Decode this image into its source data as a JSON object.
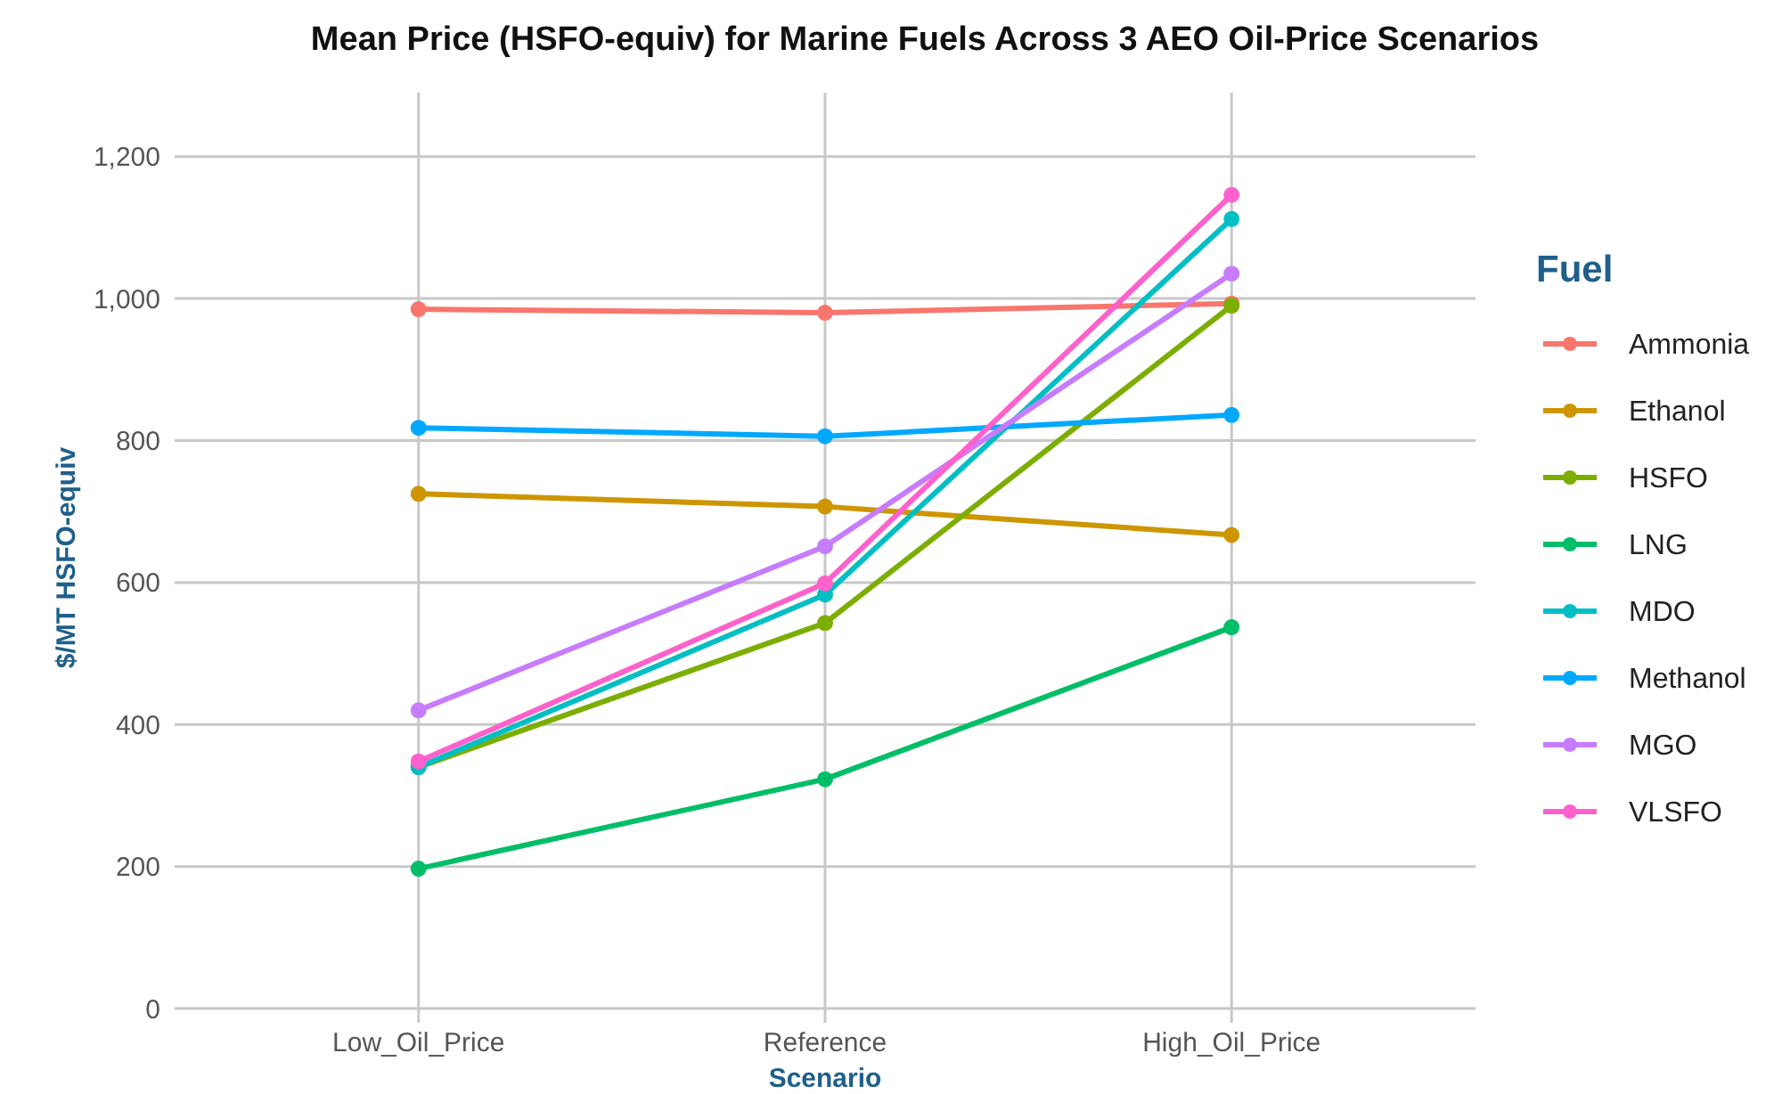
{
  "chart_data": {
    "type": "line",
    "title": "Mean Price (HSFO-equiv) for Marine Fuels Across 3 AEO Oil-Price Scenarios",
    "xlabel": "Scenario",
    "ylabel": "$/MT HSFO-equiv",
    "legend_title": "Fuel",
    "categories": [
      "Low_Oil_Price",
      "Reference",
      "High_Oil_Price"
    ],
    "series": [
      {
        "name": "Ammonia",
        "color": "#f8766d",
        "values": [
          985,
          980,
          993
        ]
      },
      {
        "name": "Ethanol",
        "color": "#cd9600",
        "values": [
          725,
          707,
          667
        ]
      },
      {
        "name": "HSFO",
        "color": "#7cae00",
        "values": [
          340,
          543,
          990
        ]
      },
      {
        "name": "LNG",
        "color": "#00be67",
        "values": [
          197,
          323,
          537
        ]
      },
      {
        "name": "MDO",
        "color": "#00bfc4",
        "values": [
          340,
          583,
          1112
        ]
      },
      {
        "name": "Methanol",
        "color": "#00a9ff",
        "values": [
          818,
          806,
          836
        ]
      },
      {
        "name": "MGO",
        "color": "#c77cff",
        "values": [
          420,
          651,
          1035
        ]
      },
      {
        "name": "VLSFO",
        "color": "#ff61cc",
        "values": [
          348,
          599,
          1146
        ]
      }
    ],
    "ylim": [
      -20,
      1290
    ],
    "yticks": [
      0,
      {
        "value": 200,
        "label": "200"
      },
      {
        "value": 400,
        "label": "400"
      },
      {
        "value": 600,
        "label": "600"
      },
      {
        "value": 800,
        "label": "800"
      },
      {
        "value": 1000,
        "label": "1,000"
      },
      {
        "value": 1200,
        "label": "1,200"
      }
    ],
    "grid": true,
    "legend": "right",
    "marker": "circle",
    "line_style": "solid"
  }
}
